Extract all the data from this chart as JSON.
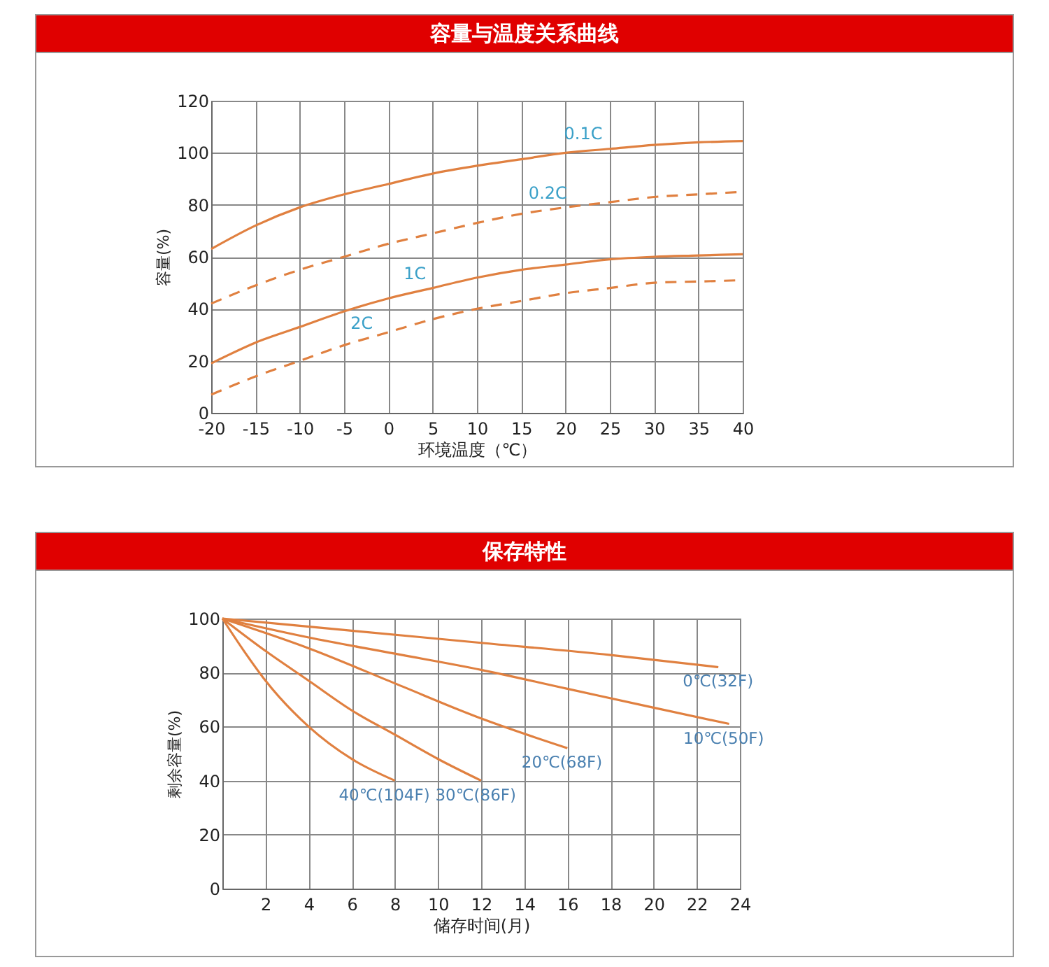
{
  "chart_data": [
    {
      "type": "line",
      "title": "容量与温度关系曲线",
      "xlabel": "环境温度（℃）",
      "ylabel": "容量(%)",
      "x": [
        -20,
        -15,
        -10,
        -5,
        0,
        5,
        10,
        15,
        20,
        25,
        30,
        35,
        40
      ],
      "xlim": [
        -20,
        40
      ],
      "xticks": [
        -20,
        -15,
        -10,
        -5,
        0,
        5,
        10,
        15,
        20,
        25,
        30,
        35,
        40
      ],
      "ylim": [
        0,
        120
      ],
      "yticks": [
        0,
        20,
        40,
        60,
        80,
        100,
        120
      ],
      "grid": true,
      "series": [
        {
          "color": "#e08040",
          "line_style": "solid",
          "values": [
            63,
            72,
            79,
            84,
            88,
            92,
            95,
            97.5,
            100,
            101.5,
            103,
            104,
            104.5
          ]
        },
        {
          "color": "#e08040",
          "line_style": "dashed",
          "values": [
            42,
            49,
            55,
            60,
            65,
            69,
            73,
            76.5,
            79,
            81,
            83,
            84,
            85
          ]
        },
        {
          "color": "#e08040",
          "line_style": "solid",
          "values": [
            19,
            27,
            33,
            39,
            44,
            48,
            52,
            55,
            57,
            59,
            60,
            60.5,
            61
          ]
        },
        {
          "color": "#e08040",
          "line_style": "dashed",
          "values": [
            7,
            14,
            20,
            26,
            31,
            36,
            40,
            43,
            46,
            48,
            50,
            50.5,
            51
          ]
        }
      ],
      "annotations": [
        {
          "text": "0.1C",
          "x": 22,
          "y": 101
        },
        {
          "text": "0.2C",
          "x": 18,
          "y": 78
        },
        {
          "text": "1C",
          "x": 3,
          "y": 47
        },
        {
          "text": "2C",
          "x": -3,
          "y": 28
        }
      ]
    },
    {
      "type": "line",
      "title": "保存特性",
      "xlabel": "储存时间(月)",
      "ylabel": "剩余容量(%)",
      "xlim": [
        0,
        24
      ],
      "xticks": [
        2,
        4,
        6,
        8,
        10,
        12,
        14,
        16,
        18,
        20,
        22,
        24
      ],
      "ylim": [
        0,
        100
      ],
      "yticks": [
        0,
        20,
        40,
        60,
        80,
        100
      ],
      "grid": true,
      "series": [
        {
          "color": "#e08040",
          "x": [
            0,
            6,
            12,
            18,
            23
          ],
          "values": [
            100,
            95.5,
            91,
            86.5,
            82
          ]
        },
        {
          "color": "#e08040",
          "x": [
            0,
            4,
            8,
            12,
            16,
            20,
            23.5
          ],
          "values": [
            100,
            93,
            87,
            81,
            74,
            67,
            61
          ]
        },
        {
          "color": "#e08040",
          "x": [
            0,
            4,
            8,
            12,
            16
          ],
          "values": [
            100,
            89,
            76,
            63,
            52
          ]
        },
        {
          "color": "#e08040",
          "x": [
            0,
            2,
            4,
            6,
            8,
            10,
            12
          ],
          "values": [
            100,
            88,
            77,
            66,
            57,
            48,
            40
          ]
        },
        {
          "color": "#e08040",
          "x": [
            0,
            1,
            2,
            4,
            6,
            8
          ],
          "values": [
            100,
            88,
            77,
            60,
            48,
            40
          ]
        }
      ],
      "annotations": [
        {
          "text": "0℃(32F)",
          "x": 23,
          "y": 82
        },
        {
          "text": "10℃(50F)",
          "x": 23.5,
          "y": 61
        },
        {
          "text": "20℃(68F)",
          "x": 16,
          "y": 52
        },
        {
          "text": "30℃(86F)",
          "x": 12,
          "y": 40
        },
        {
          "text": "40℃(104F)",
          "x": 8,
          "y": 40
        }
      ]
    }
  ]
}
